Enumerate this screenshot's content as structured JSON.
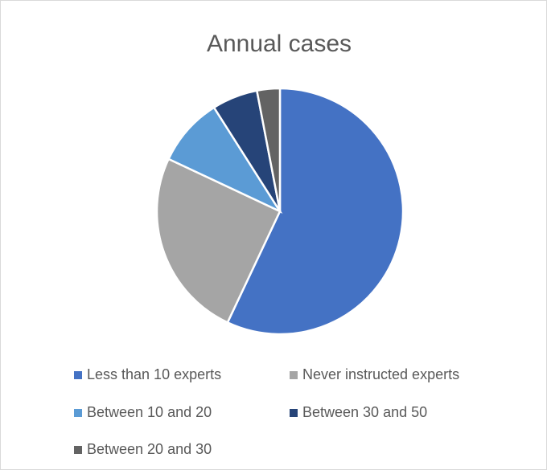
{
  "chart_data": {
    "type": "pie",
    "title": "Annual cases",
    "categories": [
      "Less than 10 experts",
      "Never instructed experts",
      "Between 10 and 20",
      "Between 30 and 50",
      "Between 20 and 30"
    ],
    "values": [
      57,
      25,
      9,
      6,
      3
    ],
    "colors": [
      "#4472c4",
      "#a5a5a5",
      "#5b9bd5",
      "#264478",
      "#636363"
    ],
    "legend": "bottom"
  }
}
